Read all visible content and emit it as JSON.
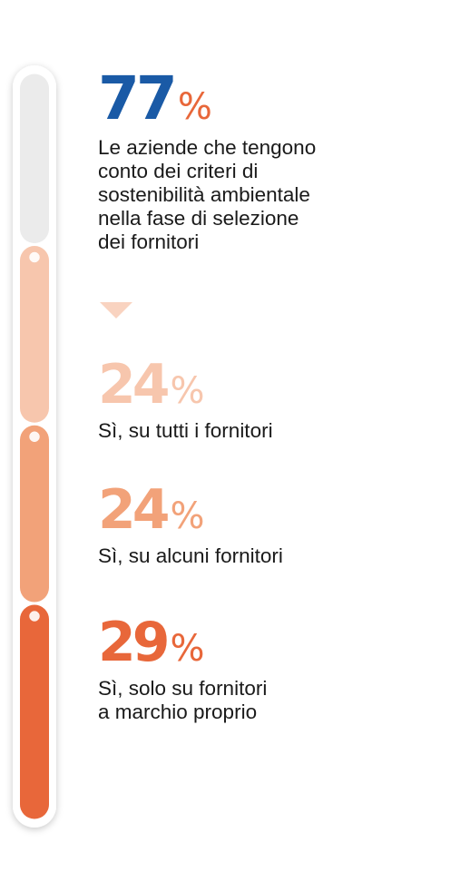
{
  "colors": {
    "main_blue": "#1a5aa6",
    "accent": "#e8673a",
    "seg_light": "#f7c6ad",
    "seg_mid": "#f2a279",
    "seg_dark": "#e8673a",
    "seg_gray": "#ebebeb"
  },
  "chart_data": {
    "type": "bar",
    "orientation": "vertical-stacked-timeline",
    "headline": {
      "value": 77,
      "unit": "%",
      "label": "Le aziende che tengono conto dei criteri di sostenibilità ambientale nella fase di selezione dei fornitori"
    },
    "categories": [
      "Sì, su tutti i fornitori",
      "Sì, su alcuni fornitori",
      "Sì, solo su fornitori a marchio proprio"
    ],
    "values": [
      24,
      24,
      29
    ],
    "unit": "%",
    "remainder": 23
  },
  "headline": {
    "value": "77",
    "unit": "%",
    "label_lines": [
      "Le aziende che tengono",
      "conto dei criteri di",
      "sostenibilità ambientale",
      "nella fase di selezione",
      "dei fornitori"
    ]
  },
  "items": [
    {
      "value": "24",
      "unit": "%",
      "label_lines": [
        "Sì, su tutti i fornitori"
      ]
    },
    {
      "value": "24",
      "unit": "%",
      "label_lines": [
        "Sì, su alcuni fornitori"
      ]
    },
    {
      "value": "29",
      "unit": "%",
      "label_lines": [
        "Sì, solo su fornitori",
        "a marchio proprio"
      ]
    }
  ]
}
